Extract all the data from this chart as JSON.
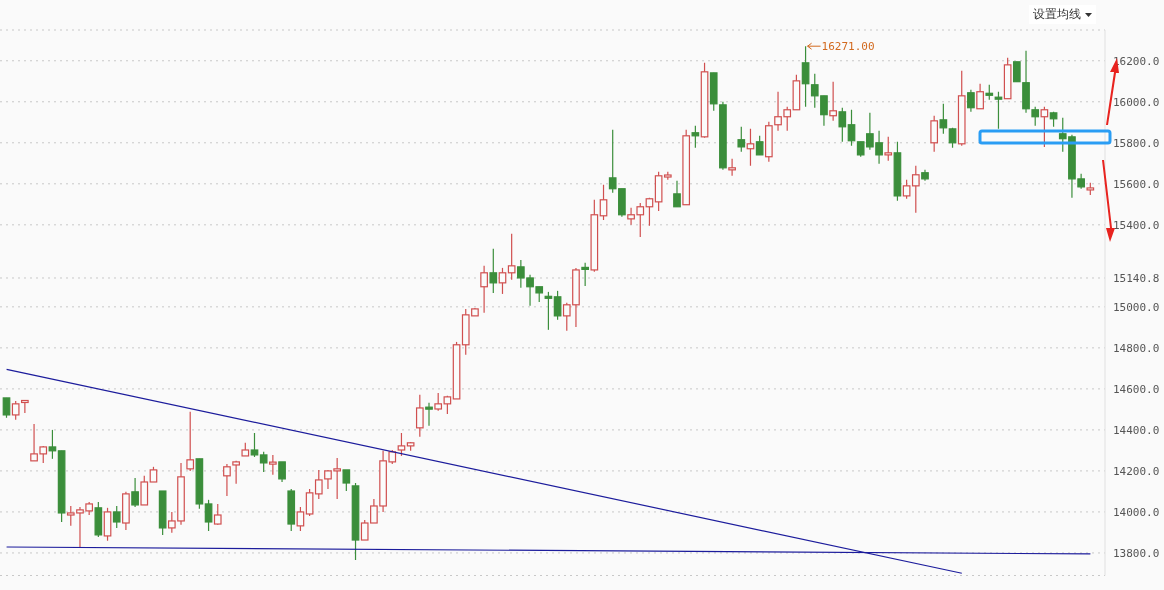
{
  "chart_data": {
    "type": "candlestick",
    "annotations": [
      "设置均线",
      "16271.00"
    ],
    "categories": [
      null,
      null,
      null,
      null,
      null,
      null,
      null,
      null,
      null,
      null,
      null,
      null,
      null,
      null,
      null,
      null,
      null,
      null,
      null,
      null,
      null,
      null,
      null,
      null,
      null,
      null,
      null,
      null,
      null,
      null,
      null,
      null,
      null,
      null,
      null,
      null,
      null,
      null,
      null,
      null,
      null,
      null,
      null,
      null,
      null,
      null,
      null,
      null,
      null,
      null,
      null,
      null,
      null,
      null,
      null,
      null,
      null,
      null,
      null,
      null,
      null,
      null,
      null,
      null,
      null,
      null,
      null,
      null,
      null,
      null,
      null,
      null,
      null,
      null,
      null,
      null,
      null,
      null,
      null,
      null,
      null,
      null,
      null,
      null,
      null,
      null,
      null,
      null,
      null,
      null,
      null,
      null,
      null,
      null,
      null,
      null,
      null,
      null,
      null,
      null,
      null,
      null,
      null,
      null,
      null,
      null,
      null,
      null,
      null,
      null,
      null,
      null,
      null,
      null,
      null,
      null,
      null,
      null,
      null
    ],
    "ohlc": [
      [
        14556,
        14556,
        14459,
        14473
      ],
      [
        14473,
        14541,
        14449,
        14527
      ],
      [
        14536,
        14541,
        14483,
        14541
      ],
      [
        14249,
        14429,
        14249,
        14283
      ],
      [
        14283,
        14322,
        14239,
        14317
      ],
      [
        14317,
        14400,
        14259,
        14298
      ],
      [
        14298,
        14298,
        13951,
        13995
      ],
      [
        13985,
        14029,
        13932,
        13995
      ],
      [
        13995,
        14024,
        13824,
        14010
      ],
      [
        14005,
        14049,
        13985,
        14039
      ],
      [
        14020,
        14049,
        13878,
        13888
      ],
      [
        13883,
        14020,
        13859,
        14000
      ],
      [
        14000,
        14029,
        13922,
        13951
      ],
      [
        13946,
        14098,
        13912,
        14088
      ],
      [
        14098,
        14166,
        14024,
        14034
      ],
      [
        14034,
        14176,
        14034,
        14146
      ],
      [
        14146,
        14220,
        14146,
        14205
      ],
      [
        14102,
        14102,
        13888,
        13922
      ],
      [
        13922,
        14000,
        13898,
        13956
      ],
      [
        13956,
        14239,
        13937,
        14171
      ],
      [
        14210,
        14488,
        14200,
        14254
      ],
      [
        14259,
        14259,
        14015,
        14039
      ],
      [
        14039,
        14059,
        13907,
        13951
      ],
      [
        13941,
        14039,
        13937,
        13985
      ],
      [
        14176,
        14234,
        14078,
        14220
      ],
      [
        14229,
        14249,
        14137,
        14244
      ],
      [
        14273,
        14337,
        14273,
        14302
      ],
      [
        14302,
        14385,
        14268,
        14278
      ],
      [
        14278,
        14293,
        14195,
        14239
      ],
      [
        14237,
        14278,
        14181,
        14239
      ],
      [
        14244,
        14244,
        14146,
        14161
      ],
      [
        14102,
        14112,
        13907,
        13941
      ],
      [
        13932,
        14024,
        13907,
        14000
      ],
      [
        13990,
        14112,
        13980,
        14093
      ],
      [
        14088,
        14205,
        14063,
        14156
      ],
      [
        14161,
        14205,
        14112,
        14200
      ],
      [
        14200,
        14263,
        14063,
        14210
      ],
      [
        14205,
        14205,
        14102,
        14141
      ],
      [
        14127,
        14141,
        13766,
        13863
      ],
      [
        13863,
        13961,
        13863,
        13946
      ],
      [
        13946,
        14063,
        13946,
        14029
      ],
      [
        14029,
        14298,
        14000,
        14249
      ],
      [
        14244,
        14302,
        14234,
        14293
      ],
      [
        14302,
        14385,
        14273,
        14322
      ],
      [
        14322,
        14341,
        14298,
        14337
      ],
      [
        14410,
        14571,
        14366,
        14507
      ],
      [
        14507,
        14532,
        14420,
        14505
      ],
      [
        14502,
        14580,
        14493,
        14527
      ],
      [
        14527,
        14566,
        14478,
        14561
      ],
      [
        14551,
        14829,
        14551,
        14815
      ],
      [
        14815,
        14990,
        14766,
        14961
      ],
      [
        14956,
        14995,
        14956,
        14990
      ],
      [
        15098,
        15200,
        14971,
        15166
      ],
      [
        15166,
        15283,
        15068,
        15117
      ],
      [
        15117,
        15190,
        15063,
        15166
      ],
      [
        15166,
        15356,
        15132,
        15200
      ],
      [
        15195,
        15229,
        15093,
        15141
      ],
      [
        15141,
        15156,
        15005,
        15098
      ],
      [
        15098,
        15098,
        15024,
        15068
      ],
      [
        15049,
        15073,
        14888,
        15044
      ],
      [
        15049,
        15078,
        14937,
        14956
      ],
      [
        14956,
        15020,
        14883,
        15010
      ],
      [
        15010,
        15190,
        14902,
        15180
      ],
      [
        15190,
        15215,
        15102,
        15185
      ],
      [
        15180,
        15522,
        15171,
        15449
      ],
      [
        15444,
        15595,
        15424,
        15522
      ],
      [
        15629,
        15863,
        15556,
        15576
      ],
      [
        15576,
        15576,
        15439,
        15449
      ],
      [
        15429,
        15483,
        15400,
        15449
      ],
      [
        15449,
        15507,
        15341,
        15488
      ],
      [
        15488,
        15532,
        15395,
        15527
      ],
      [
        15512,
        15659,
        15468,
        15639
      ],
      [
        15637,
        15659,
        15620,
        15639
      ],
      [
        15551,
        15615,
        15488,
        15488
      ],
      [
        15498,
        15863,
        15498,
        15834
      ],
      [
        15849,
        15883,
        15776,
        15834
      ],
      [
        15829,
        16190,
        15824,
        16146
      ],
      [
        16141,
        16141,
        15956,
        15990
      ],
      [
        15985,
        16000,
        15668,
        15678
      ],
      [
        15668,
        15722,
        15639,
        15678
      ],
      [
        15815,
        15878,
        15756,
        15780
      ],
      [
        15771,
        15868,
        15688,
        15795
      ],
      [
        15805,
        15834,
        15741,
        15741
      ],
      [
        15732,
        15902,
        15707,
        15883
      ],
      [
        15888,
        16049,
        15859,
        15927
      ],
      [
        15927,
        15976,
        15859,
        15961
      ],
      [
        15961,
        16132,
        15961,
        16102
      ],
      [
        16190,
        16271,
        15976,
        16088
      ],
      [
        16083,
        16137,
        15971,
        16029
      ],
      [
        16029,
        16029,
        15883,
        15937
      ],
      [
        15932,
        16098,
        15907,
        15956
      ],
      [
        15951,
        15971,
        15805,
        15878
      ],
      [
        15888,
        15961,
        15785,
        15810
      ],
      [
        15805,
        15805,
        15732,
        15741
      ],
      [
        15844,
        15946,
        15766,
        15780
      ],
      [
        15800,
        15859,
        15698,
        15741
      ],
      [
        15741,
        15829,
        15712,
        15751
      ],
      [
        15751,
        15805,
        15517,
        15541
      ],
      [
        15541,
        15620,
        15527,
        15590
      ],
      [
        15590,
        15688,
        15459,
        15644
      ],
      [
        15654,
        15668,
        15615,
        15624
      ],
      [
        15800,
        15932,
        15756,
        15907
      ],
      [
        15912,
        15990,
        15844,
        15873
      ],
      [
        15868,
        15873,
        15776,
        15800
      ],
      [
        15795,
        16151,
        15785,
        16029
      ],
      [
        16044,
        16059,
        15951,
        15971
      ],
      [
        15966,
        16088,
        15966,
        16049
      ],
      [
        16039,
        16083,
        16010,
        16034
      ],
      [
        16020,
        16049,
        15868,
        16015
      ],
      [
        16015,
        16215,
        16015,
        16180
      ],
      [
        16195,
        16195,
        16098,
        16098
      ],
      [
        16093,
        16249,
        15946,
        15966
      ],
      [
        15961,
        15976,
        15883,
        15927
      ],
      [
        15927,
        15976,
        15780,
        15961
      ],
      [
        15946,
        15951,
        15878,
        15917
      ],
      [
        15844,
        15922,
        15756,
        15820
      ],
      [
        15829,
        15839,
        15532,
        15624
      ],
      [
        15624,
        15649,
        15576,
        15585
      ],
      [
        15572,
        15605,
        15546,
        15578
      ]
    ],
    "colors": [
      "#3b8e3b",
      "#d04f4f",
      "#d04f4f",
      "#d04f4f",
      "#d04f4f",
      "#3b8e3b",
      "#3b8e3b",
      "#d04f4f",
      "#d04f4f",
      "#d04f4f",
      "#3b8e3b",
      "#d04f4f",
      "#3b8e3b",
      "#d04f4f",
      "#3b8e3b",
      "#d04f4f",
      "#d04f4f",
      "#3b8e3b",
      "#d04f4f",
      "#d04f4f",
      "#d04f4f",
      "#3b8e3b",
      "#3b8e3b",
      "#d04f4f",
      "#d04f4f",
      "#d04f4f",
      "#d04f4f",
      "#3b8e3b",
      "#3b8e3b",
      "#d04f4f",
      "#3b8e3b",
      "#3b8e3b",
      "#d04f4f",
      "#d04f4f",
      "#d04f4f",
      "#d04f4f",
      "#d04f4f",
      "#3b8e3b",
      "#3b8e3b",
      "#d04f4f",
      "#d04f4f",
      "#d04f4f",
      "#d04f4f",
      "#d04f4f",
      "#d04f4f",
      "#d04f4f",
      "#3b8e3b",
      "#d04f4f",
      "#d04f4f",
      "#d04f4f",
      "#d04f4f",
      "#d04f4f",
      "#d04f4f",
      "#3b8e3b",
      "#d04f4f",
      "#d04f4f",
      "#3b8e3b",
      "#3b8e3b",
      "#3b8e3b",
      "#3b8e3b",
      "#3b8e3b",
      "#d04f4f",
      "#d04f4f",
      "#3b8e3b",
      "#d04f4f",
      "#d04f4f",
      "#3b8e3b",
      "#3b8e3b",
      "#d04f4f",
      "#d04f4f",
      "#d04f4f",
      "#d04f4f",
      "#d04f4f",
      "#3b8e3b",
      "#d04f4f",
      "#3b8e3b",
      "#d04f4f",
      "#3b8e3b",
      "#3b8e3b",
      "#d04f4f",
      "#3b8e3b",
      "#d04f4f",
      "#3b8e3b",
      "#d04f4f",
      "#d04f4f",
      "#d04f4f",
      "#d04f4f",
      "#3b8e3b",
      "#3b8e3b",
      "#3b8e3b",
      "#d04f4f",
      "#3b8e3b",
      "#3b8e3b",
      "#3b8e3b",
      "#3b8e3b",
      "#3b8e3b",
      "#d04f4f",
      "#3b8e3b",
      "#d04f4f",
      "#d04f4f",
      "#3b8e3b",
      "#d04f4f",
      "#3b8e3b",
      "#3b8e3b",
      "#d04f4f",
      "#3b8e3b",
      "#d04f4f",
      "#3b8e3b",
      "#3b8e3b",
      "#d04f4f",
      "#3b8e3b",
      "#3b8e3b",
      "#3b8e3b",
      "#d04f4f",
      "#3b8e3b",
      "#3b8e3b",
      "#3b8e3b",
      "#3b8e3b",
      "#d04f4f"
    ],
    "series": [
      {
        "type": "line",
        "color": "#1c1c9c",
        "values": [
          14695,
          null,
          null,
          null,
          null,
          null,
          null,
          null,
          null,
          null,
          null,
          null,
          null,
          null,
          null,
          null,
          null,
          null,
          null,
          null,
          null,
          null,
          null,
          null,
          null,
          null,
          null,
          null,
          null,
          null,
          null,
          null,
          null,
          null,
          null,
          null,
          null,
          null,
          null,
          null,
          null,
          null,
          null,
          null,
          null,
          null,
          null,
          null,
          null,
          null,
          null,
          null,
          null,
          null,
          null,
          null,
          null,
          null,
          null,
          null,
          null,
          null,
          null,
          null,
          null,
          null,
          null,
          null,
          null,
          null,
          null,
          null,
          null,
          null,
          null,
          null,
          null,
          null,
          null,
          null,
          null,
          null,
          null,
          null,
          null,
          null,
          null,
          null,
          null,
          null,
          null,
          null,
          null,
          null,
          null,
          null,
          null,
          null,
          null,
          null,
          null,
          null,
          null,
          null,
          13701,
          null,
          null,
          null,
          null,
          null,
          null,
          null,
          null,
          null,
          null,
          null,
          null,
          null,
          null
        ]
      },
      {
        "type": "line",
        "color": "#1c1c9c",
        "values": [
          13829,
          null,
          null,
          null,
          null,
          null,
          null,
          null,
          null,
          null,
          null,
          null,
          null,
          null,
          null,
          null,
          null,
          null,
          null,
          null,
          null,
          null,
          null,
          null,
          null,
          null,
          null,
          null,
          null,
          null,
          null,
          null,
          null,
          null,
          null,
          null,
          null,
          null,
          null,
          null,
          null,
          null,
          null,
          null,
          null,
          null,
          null,
          null,
          null,
          null,
          null,
          null,
          null,
          null,
          null,
          null,
          null,
          null,
          null,
          null,
          null,
          null,
          null,
          null,
          null,
          null,
          null,
          null,
          null,
          null,
          null,
          null,
          null,
          null,
          null,
          null,
          null,
          null,
          null,
          null,
          null,
          null,
          null,
          null,
          null,
          null,
          null,
          null,
          null,
          null,
          null,
          null,
          null,
          null,
          null,
          null,
          null,
          null,
          null,
          null,
          null,
          null,
          null,
          null,
          null,
          null,
          null,
          null,
          null,
          null,
          null,
          null,
          null,
          null,
          null,
          null,
          null,
          null,
          13795
        ]
      }
    ],
    "ylim": [
      13690,
      16350
    ],
    "yticks": [
      {
        "value": 13800,
        "label": "13800.0"
      },
      {
        "value": 14000,
        "label": "14000.0"
      },
      {
        "value": 14200,
        "label": "14200.0"
      },
      {
        "value": 14400,
        "label": "14400.0"
      },
      {
        "value": 14600,
        "label": "14600.0"
      },
      {
        "value": 14800,
        "label": "14800.0"
      },
      {
        "value": 15000,
        "label": "15000.0"
      },
      {
        "value": 15140.8,
        "label": "15140.8"
      },
      {
        "value": 15400,
        "label": "15400.0"
      },
      {
        "value": 15600,
        "label": "15600.0"
      },
      {
        "value": 15800,
        "label": "15800.0"
      },
      {
        "value": 16000,
        "label": "16000.0"
      },
      {
        "value": 16200,
        "label": "16200.0"
      }
    ],
    "grid": "y",
    "tick_labels": "y"
  }
}
